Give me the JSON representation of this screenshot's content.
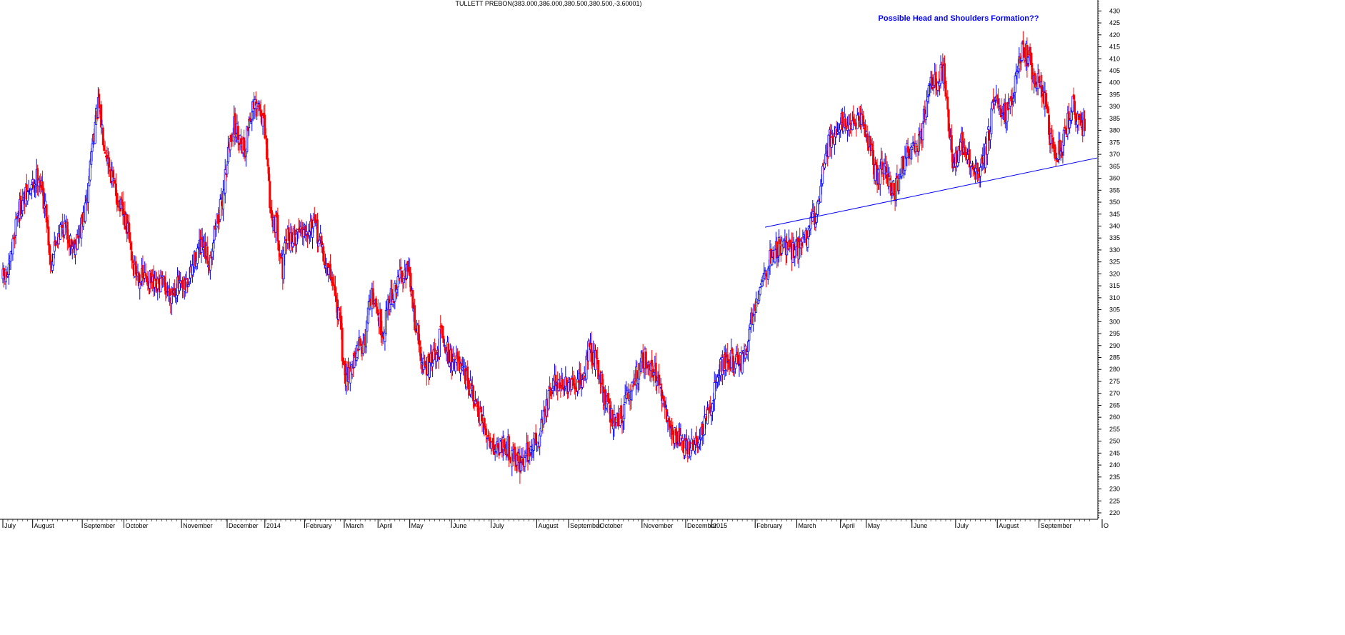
{
  "chart_data": {
    "type": "line",
    "title": "TULLETT PREBON(383.000,386.000,380.500,380.500,-3.60001)",
    "annotation": "Possible Head and Shoulders Formation??",
    "annotation_color": "#0000ff",
    "up_color": "#0000ff",
    "down_color": "#ff0000",
    "trendline_color": "#0000ff",
    "xlabel": "",
    "ylabel": "",
    "ylim": [
      215,
      435
    ],
    "yticks": [
      220,
      225,
      230,
      235,
      240,
      245,
      250,
      255,
      260,
      265,
      270,
      275,
      280,
      285,
      290,
      295,
      300,
      305,
      310,
      315,
      320,
      325,
      330,
      335,
      340,
      345,
      350,
      355,
      360,
      365,
      370,
      375,
      380,
      385,
      390,
      395,
      400,
      405,
      410,
      415,
      420,
      425,
      430
    ],
    "x_month_labels": [
      "July",
      "August",
      "September",
      "October",
      "November",
      "December",
      "2014",
      "February",
      "March",
      "April",
      "May",
      "June",
      "July",
      "August",
      "September",
      "October",
      "November",
      "December",
      "2015",
      "February",
      "March",
      "April",
      "May",
      "June",
      "July",
      "August",
      "September",
      "O"
    ],
    "x_month_index": [
      0,
      30,
      80,
      122,
      180,
      226,
      264,
      304,
      344,
      378,
      410,
      452,
      492,
      538,
      570,
      600,
      644,
      688,
      714,
      758,
      800,
      844,
      870,
      916,
      960,
      1002,
      1044,
      1082
    ],
    "n_sessions": 1100,
    "series": [
      {
        "values": [
          [
            0,
            318
          ],
          [
            6,
            320
          ],
          [
            14,
            345
          ],
          [
            20,
            350
          ],
          [
            28,
            355
          ],
          [
            36,
            362
          ],
          [
            44,
            345
          ],
          [
            48,
            324
          ],
          [
            56,
            338
          ],
          [
            62,
            340
          ],
          [
            70,
            332
          ],
          [
            76,
            335
          ],
          [
            84,
            348
          ],
          [
            90,
            375
          ],
          [
            96,
            390
          ],
          [
            102,
            376
          ],
          [
            110,
            360
          ],
          [
            118,
            348
          ],
          [
            126,
            338
          ],
          [
            132,
            322
          ],
          [
            140,
            318
          ],
          [
            146,
            318
          ],
          [
            154,
            313
          ],
          [
            160,
            316
          ],
          [
            168,
            312
          ],
          [
            176,
            315
          ],
          [
            182,
            312
          ],
          [
            188,
            318
          ],
          [
            196,
            330
          ],
          [
            202,
            330
          ],
          [
            208,
            325
          ],
          [
            214,
            340
          ],
          [
            220,
            348
          ],
          [
            226,
            368
          ],
          [
            232,
            382
          ],
          [
            238,
            378
          ],
          [
            244,
            372
          ],
          [
            248,
            385
          ],
          [
            252,
            388
          ],
          [
            258,
            390
          ],
          [
            262,
            385
          ],
          [
            266,
            370
          ],
          [
            270,
            345
          ],
          [
            276,
            340
          ],
          [
            282,
            322
          ],
          [
            286,
            335
          ],
          [
            294,
            335
          ],
          [
            300,
            340
          ],
          [
            306,
            340
          ],
          [
            312,
            340
          ],
          [
            316,
            338
          ],
          [
            322,
            330
          ],
          [
            326,
            322
          ],
          [
            332,
            318
          ],
          [
            340,
            298
          ],
          [
            344,
            278
          ],
          [
            350,
            280
          ],
          [
            356,
            285
          ],
          [
            360,
            292
          ],
          [
            364,
            290
          ],
          [
            370,
            312
          ],
          [
            376,
            305
          ],
          [
            380,
            300
          ],
          [
            384,
            295
          ],
          [
            388,
            310
          ],
          [
            394,
            310
          ],
          [
            400,
            320
          ],
          [
            406,
            322
          ],
          [
            410,
            318
          ],
          [
            414,
            303
          ],
          [
            418,
            295
          ],
          [
            422,
            282
          ],
          [
            426,
            280
          ],
          [
            430,
            282
          ],
          [
            434,
            285
          ],
          [
            438,
            285
          ],
          [
            442,
            300
          ],
          [
            446,
            290
          ],
          [
            452,
            283
          ],
          [
            456,
            285
          ],
          [
            462,
            278
          ],
          [
            468,
            275
          ],
          [
            474,
            268
          ],
          [
            480,
            260
          ],
          [
            486,
            255
          ],
          [
            492,
            250
          ],
          [
            496,
            248
          ],
          [
            500,
            248
          ],
          [
            506,
            250
          ],
          [
            512,
            245
          ],
          [
            518,
            243
          ],
          [
            522,
            240
          ],
          [
            528,
            245
          ],
          [
            534,
            248
          ],
          [
            540,
            252
          ],
          [
            544,
            260
          ],
          [
            548,
            265
          ],
          [
            552,
            270
          ],
          [
            556,
            275
          ],
          [
            562,
            275
          ],
          [
            568,
            272
          ],
          [
            574,
            272
          ],
          [
            580,
            274
          ],
          [
            586,
            278
          ],
          [
            590,
            288
          ],
          [
            596,
            285
          ],
          [
            602,
            278
          ],
          [
            606,
            268
          ],
          [
            612,
            262
          ],
          [
            618,
            258
          ],
          [
            624,
            262
          ],
          [
            630,
            268
          ],
          [
            636,
            275
          ],
          [
            642,
            282
          ],
          [
            648,
            285
          ],
          [
            652,
            282
          ],
          [
            658,
            278
          ],
          [
            662,
            270
          ],
          [
            666,
            265
          ],
          [
            670,
            258
          ],
          [
            676,
            252
          ],
          [
            682,
            252
          ],
          [
            688,
            247
          ],
          [
            694,
            248
          ],
          [
            700,
            250
          ],
          [
            706,
            255
          ],
          [
            712,
            262
          ],
          [
            718,
            275
          ],
          [
            724,
            282
          ],
          [
            730,
            285
          ],
          [
            736,
            283
          ],
          [
            742,
            282
          ],
          [
            748,
            286
          ],
          [
            754,
            300
          ],
          [
            760,
            312
          ],
          [
            766,
            318
          ],
          [
            772,
            325
          ],
          [
            778,
            330
          ],
          [
            784,
            332
          ],
          [
            790,
            330
          ],
          [
            796,
            330
          ],
          [
            802,
            332
          ],
          [
            808,
            334
          ],
          [
            812,
            338
          ],
          [
            816,
            342
          ],
          [
            820,
            345
          ],
          [
            824,
            358
          ],
          [
            828,
            368
          ],
          [
            832,
            375
          ],
          [
            836,
            378
          ],
          [
            840,
            380
          ],
          [
            844,
            385
          ],
          [
            850,
            383
          ],
          [
            854,
            380
          ],
          [
            860,
            382
          ],
          [
            866,
            385
          ],
          [
            870,
            380
          ],
          [
            874,
            372
          ],
          [
            878,
            364
          ],
          [
            882,
            360
          ],
          [
            886,
            365
          ],
          [
            890,
            362
          ],
          [
            894,
            356
          ],
          [
            898,
            354
          ],
          [
            902,
            358
          ],
          [
            906,
            365
          ],
          [
            910,
            370
          ],
          [
            916,
            372
          ],
          [
            920,
            374
          ],
          [
            924,
            376
          ],
          [
            928,
            385
          ],
          [
            932,
            395
          ],
          [
            936,
            400
          ],
          [
            940,
            400
          ],
          [
            944,
            403
          ],
          [
            948,
            404
          ],
          [
            950,
            395
          ],
          [
            954,
            378
          ],
          [
            958,
            365
          ],
          [
            962,
            368
          ],
          [
            966,
            375
          ],
          [
            970,
            372
          ],
          [
            974,
            367
          ],
          [
            978,
            362
          ],
          [
            982,
            362
          ],
          [
            986,
            364
          ],
          [
            990,
            370
          ],
          [
            994,
            380
          ],
          [
            998,
            390
          ],
          [
            1002,
            395
          ],
          [
            1006,
            390
          ],
          [
            1010,
            388
          ],
          [
            1014,
            390
          ],
          [
            1018,
            395
          ],
          [
            1022,
            405
          ],
          [
            1026,
            412
          ],
          [
            1030,
            413
          ],
          [
            1034,
            410
          ],
          [
            1038,
            402
          ],
          [
            1042,
            400
          ],
          [
            1046,
            398
          ],
          [
            1050,
            392
          ],
          [
            1054,
            380
          ],
          [
            1058,
            372
          ],
          [
            1062,
            370
          ],
          [
            1066,
            372
          ],
          [
            1070,
            378
          ],
          [
            1074,
            385
          ],
          [
            1078,
            390
          ],
          [
            1082,
            385
          ],
          [
            1086,
            383
          ],
          [
            1090,
            381
          ]
        ]
      },
      {
        "name": "",
        "values": [
          [
            768,
            339.5
          ],
          [
            1100,
            368.5
          ]
        ]
      }
    ]
  }
}
